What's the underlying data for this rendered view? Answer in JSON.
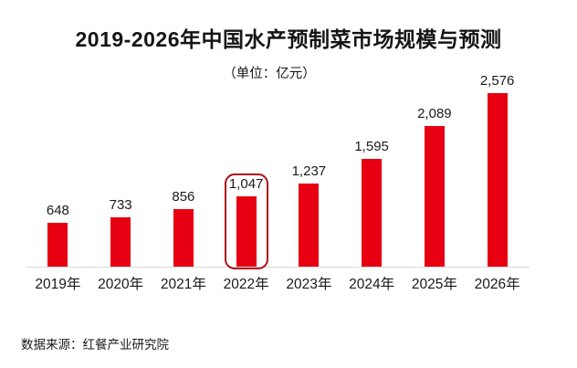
{
  "chart_data": {
    "type": "bar",
    "title": "2019-2026年中国水产预制菜市场规模与预测",
    "unit_label": "（单位：亿元）",
    "categories": [
      "2019年",
      "2020年",
      "2021年",
      "2022年",
      "2023年",
      "2024年",
      "2025年",
      "2026年"
    ],
    "values": [
      648,
      733,
      856,
      1047,
      1237,
      1595,
      2089,
      2576
    ],
    "value_labels": [
      "648",
      "733",
      "856",
      "1,047",
      "1,237",
      "1,595",
      "2,089",
      "2,576"
    ],
    "highlighted_index": 3,
    "highlighted_category": "2022年",
    "source": "数据来源：红餐产业研究院",
    "xlabel": "",
    "ylabel": "",
    "ylim": [
      0,
      2576
    ],
    "grid": false,
    "legend": "none",
    "colors": {
      "bar": "#e60012",
      "highlight_border": "#b01116",
      "axis_line": "#d9d9d9",
      "text": "#1a1a1a"
    }
  }
}
